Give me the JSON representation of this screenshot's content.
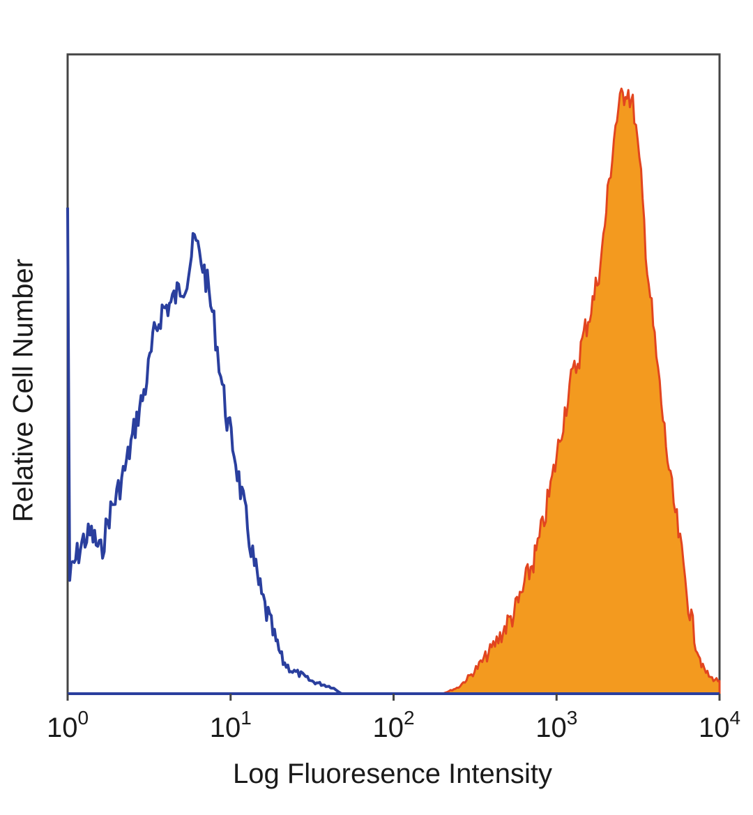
{
  "chart_data": {
    "type": "area",
    "title": "",
    "xlabel": "Log Fluoresence Intensity",
    "ylabel": "Relative Cell Number",
    "x_scale": "log",
    "xlim": [
      1,
      10000
    ],
    "ylim": [
      0,
      1
    ],
    "x_ticks": [
      {
        "value": 1,
        "base": "10",
        "exp": "0"
      },
      {
        "value": 10,
        "base": "10",
        "exp": "1"
      },
      {
        "value": 100,
        "base": "10",
        "exp": "2"
      },
      {
        "value": 1000,
        "base": "10",
        "exp": "3"
      },
      {
        "value": 10000,
        "base": "10",
        "exp": "4"
      }
    ],
    "grid": false,
    "legend": "none",
    "series": [
      {
        "style": "outline",
        "color": "#2a3f9e",
        "x": [
          1,
          1.03,
          1.12,
          1.25,
          1.4,
          1.6,
          1.8,
          2.0,
          2.3,
          2.6,
          3.0,
          3.4,
          3.8,
          4.3,
          4.8,
          5.4,
          6.0,
          6.6,
          7.2,
          7.9,
          8.7,
          9.5,
          10.5,
          11.5,
          12.7,
          14,
          15.5,
          17,
          19,
          21,
          24,
          27,
          31,
          36,
          42,
          48
        ],
        "y": [
          0.76,
          0.18,
          0.21,
          0.24,
          0.25,
          0.22,
          0.28,
          0.31,
          0.36,
          0.42,
          0.48,
          0.56,
          0.6,
          0.61,
          0.63,
          0.65,
          0.71,
          0.68,
          0.64,
          0.58,
          0.5,
          0.43,
          0.38,
          0.32,
          0.26,
          0.2,
          0.15,
          0.12,
          0.08,
          0.05,
          0.035,
          0.03,
          0.02,
          0.015,
          0.01,
          0.0
        ]
      },
      {
        "style": "filled",
        "color": "#f39a1f",
        "edge_color": "#e2451f",
        "x": [
          200,
          250,
          300,
          350,
          400,
          450,
          500,
          560,
          620,
          680,
          750,
          820,
          900,
          1000,
          1100,
          1200,
          1350,
          1500,
          1700,
          1900,
          2100,
          2300,
          2500,
          2700,
          3000,
          3300,
          3600,
          4000,
          4500,
          5000,
          5600,
          6300,
          7000,
          7900,
          8800,
          10000
        ],
        "y": [
          0.0,
          0.01,
          0.03,
          0.05,
          0.07,
          0.09,
          0.11,
          0.13,
          0.16,
          0.19,
          0.22,
          0.26,
          0.31,
          0.37,
          0.43,
          0.48,
          0.52,
          0.57,
          0.62,
          0.69,
          0.8,
          0.89,
          0.93,
          0.95,
          0.91,
          0.8,
          0.67,
          0.55,
          0.43,
          0.33,
          0.25,
          0.16,
          0.09,
          0.04,
          0.025,
          0.02
        ]
      }
    ]
  }
}
